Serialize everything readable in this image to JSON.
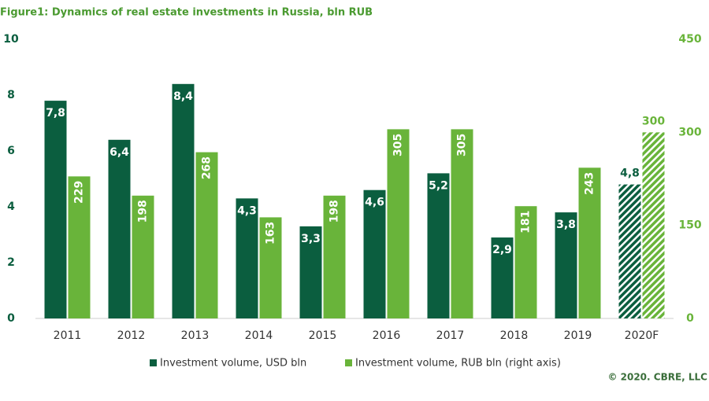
{
  "chart_data": {
    "type": "bar",
    "title": "Figure1: Dynamics of real estate investments in Russia, bln RUB",
    "source": "© 2020. CBRE, LLC",
    "categories": [
      "2011",
      "2012",
      "2013",
      "2014",
      "2015",
      "2016",
      "2017",
      "2018",
      "2019",
      "2020F"
    ],
    "hatched": [
      false,
      false,
      false,
      false,
      false,
      false,
      false,
      false,
      false,
      true
    ],
    "series": [
      {
        "name": "Investment volume, USD bln",
        "color": "#0b5e3f",
        "values": [
          7.8,
          6.4,
          8.4,
          4.3,
          3.3,
          4.6,
          5.2,
          2.9,
          3.8,
          4.8
        ],
        "value_labels": [
          "7,8",
          "6,4",
          "8,4",
          "4,3",
          "3,3",
          "4,6",
          "5,2",
          "2,9",
          "3,8",
          "4,8"
        ]
      },
      {
        "name": "Investment volume, RUB bln (right axis)",
        "color": "#69b43a",
        "axis": "y2",
        "values": [
          229,
          198,
          268,
          163,
          198,
          305,
          305,
          181,
          243,
          300
        ]
      }
    ],
    "ylim": [
      0,
      10
    ],
    "yticks": [
      0,
      2,
      4,
      6,
      8,
      10
    ],
    "y2lim": [
      0,
      450
    ],
    "y2ticks": [
      0,
      150,
      300,
      450
    ]
  }
}
